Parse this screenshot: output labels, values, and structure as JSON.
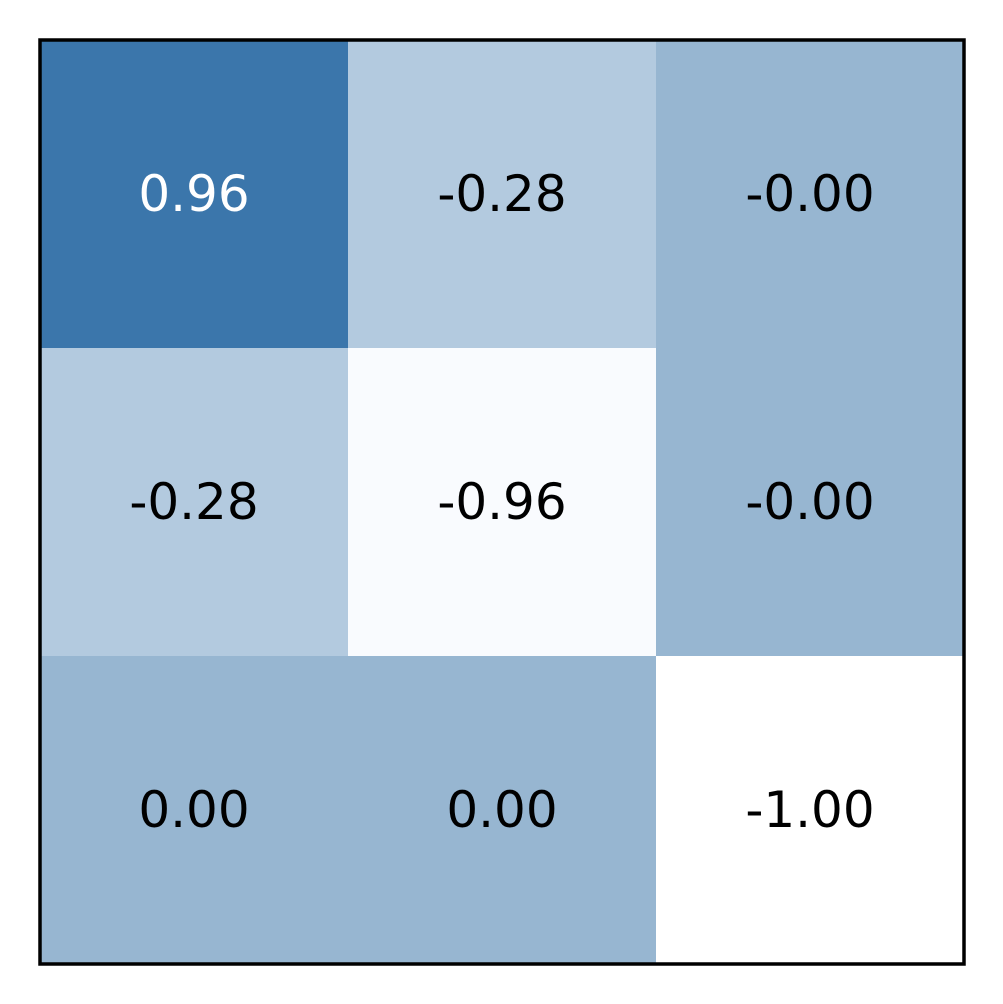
{
  "chart_data": {
    "type": "heatmap",
    "title": "",
    "xlabel": "",
    "ylabel": "",
    "rows": 3,
    "cols": 3,
    "values": [
      [
        0.96,
        -0.28,
        -0.0
      ],
      [
        -0.28,
        -0.96,
        -0.0
      ],
      [
        0.0,
        0.0,
        -1.0
      ]
    ],
    "labels": [
      [
        "0.96",
        "-0.28",
        "-0.00"
      ],
      [
        "-0.28",
        "-0.96",
        "-0.00"
      ],
      [
        "0.00",
        "0.00",
        "-1.00"
      ]
    ],
    "colormap": "Blues",
    "cell_colors": [
      [
        "#3b76ab",
        "#b3cadf",
        "#97b6d1"
      ],
      [
        "#b3cadf",
        "#f9fbfe",
        "#97b6d1"
      ],
      [
        "#97b6d1",
        "#97b6d1",
        "#ffffff"
      ]
    ],
    "text_colors": [
      [
        "#ffffff",
        "#000000",
        "#000000"
      ],
      [
        "#000000",
        "#000000",
        "#000000"
      ],
      [
        "#000000",
        "#000000",
        "#000000"
      ]
    ],
    "grid": false,
    "colorbar": false
  }
}
